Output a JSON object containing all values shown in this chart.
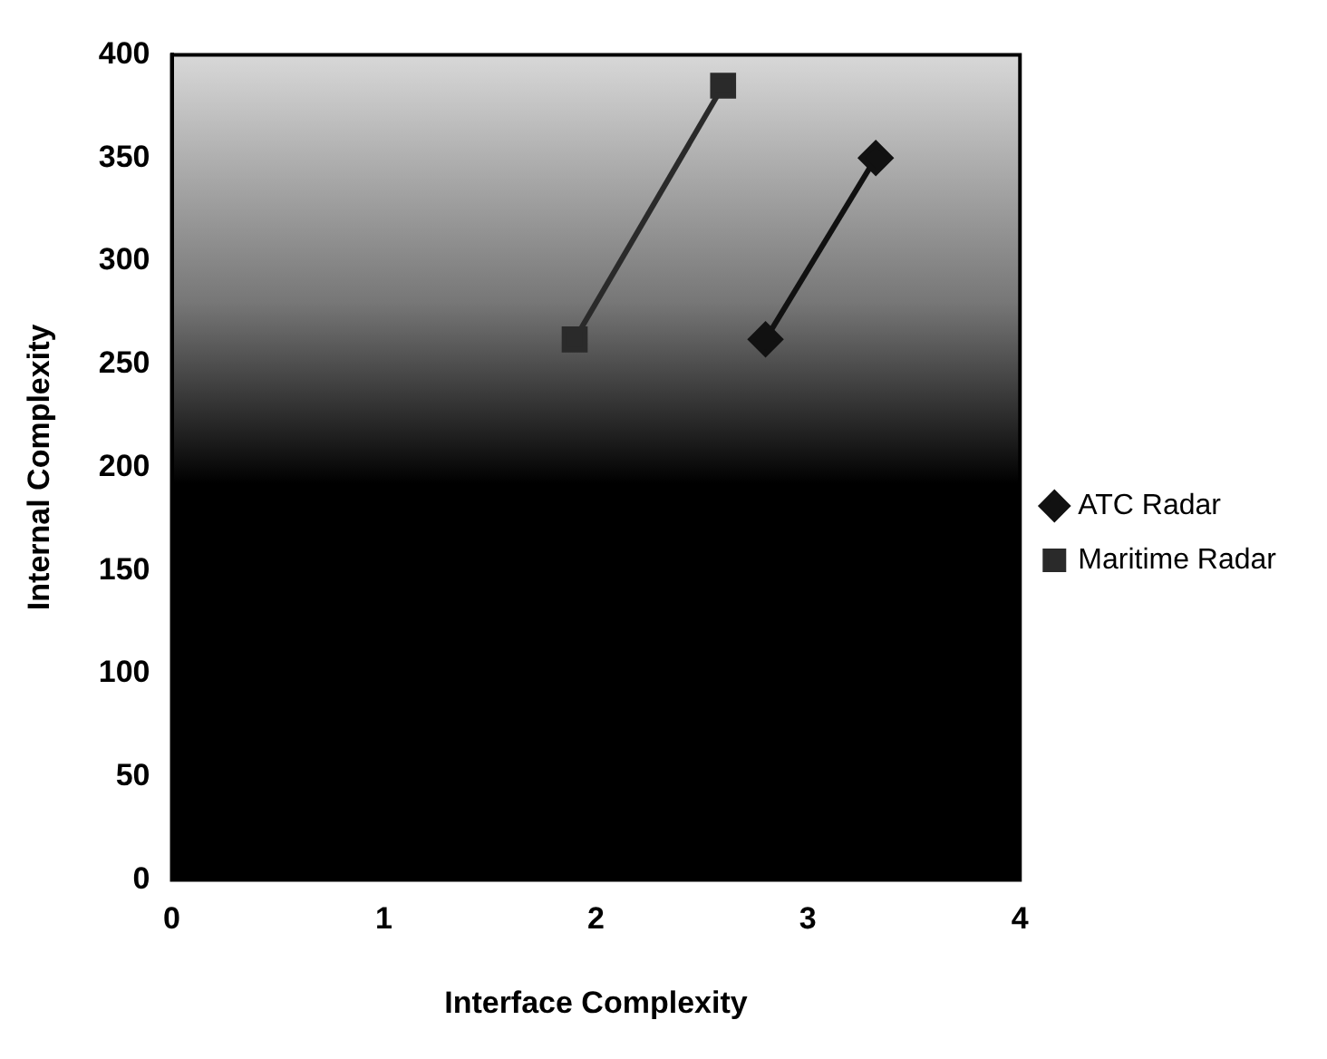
{
  "chart_data": {
    "type": "scatter",
    "xlabel": "Interface Complexity",
    "ylabel": "Internal Complexity",
    "xlim": [
      0,
      4
    ],
    "xticks": [
      0,
      1,
      2,
      3,
      4
    ],
    "ylim": [
      0,
      400
    ],
    "yticks": [
      0,
      50,
      100,
      150,
      200,
      250,
      300,
      350,
      400
    ],
    "grid": false,
    "legend": "right",
    "series": [
      {
        "name": "ATC Radar",
        "type": "line",
        "marker": "diamond",
        "color": "#111111",
        "x": [
          2.8,
          3.32
        ],
        "values": [
          262,
          350
        ]
      },
      {
        "name": "Maritime Radar",
        "type": "line",
        "marker": "square",
        "color": "#2a2a2a",
        "x": [
          1.9,
          2.6
        ],
        "values": [
          262,
          385
        ]
      }
    ]
  }
}
